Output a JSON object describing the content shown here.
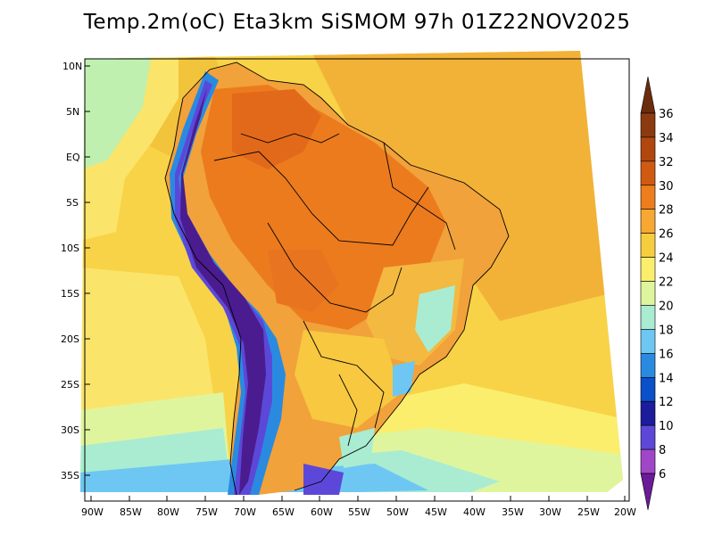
{
  "title": "Temp.2m(oC) Eta3km SiSMOM 97h 01Z22NOV2025",
  "lat_labels": [
    "10N",
    "5N",
    "EQ",
    "5S",
    "10S",
    "15S",
    "20S",
    "25S",
    "30S",
    "35S"
  ],
  "lon_labels": [
    "90W",
    "85W",
    "80W",
    "75W",
    "70W",
    "65W",
    "60W",
    "55W",
    "50W",
    "45W",
    "40W",
    "35W",
    "30W",
    "25W",
    "20W"
  ],
  "colorbar": {
    "ticks": [
      "36",
      "34",
      "32",
      "30",
      "28",
      "26",
      "24",
      "22",
      "20",
      "18",
      "16",
      "14",
      "12",
      "10",
      "8",
      "6"
    ],
    "colors": [
      "#6b2c0e",
      "#8c3a10",
      "#b0470f",
      "#d05a12",
      "#ee7d1d",
      "#f7a833",
      "#f6cd3e",
      "#fbee6d",
      "#dff59d",
      "#a9ecd2",
      "#6ec7f2",
      "#2a8ae0",
      "#0a50c8",
      "#1b1d9c",
      "#5c48d8",
      "#a047c8",
      "#6b1b96"
    ]
  },
  "palette": {
    "sea_warm": "#f2b238",
    "sea_mid": "#f8d347",
    "sea_cool": "#fbee6d",
    "land_hot": "#ec7b1e",
    "andes_cold": "#4b1c8f",
    "andes_mid": "#3a6fd8"
  }
}
